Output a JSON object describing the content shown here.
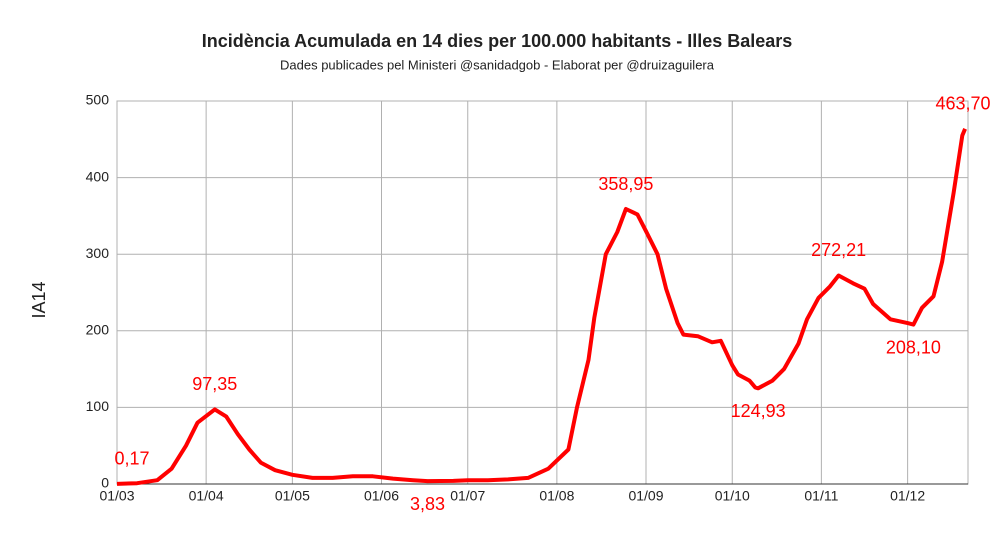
{
  "chart_data": {
    "type": "line",
    "title": "Incidència Acumulada en 14 dies per 100.000 habitants - Illes Balears",
    "subtitle": "Dades publicades pel Ministeri @sanidadgob - Elaborat per @druizaguilera",
    "y_label": "IA14",
    "x": [
      "01/03",
      "08/03",
      "15/03",
      "20/03",
      "25/03",
      "29/03",
      "04/04",
      "08/04",
      "12/04",
      "16/04",
      "20/04",
      "25/04",
      "01/05",
      "08/05",
      "15/05",
      "22/05",
      "29/05",
      "05/06",
      "12/06",
      "17/06",
      "26/06",
      "01/07",
      "08/07",
      "15/07",
      "22/07",
      "29/07",
      "05/08",
      "08/08",
      "12/08",
      "14/08",
      "18/08",
      "22/08",
      "25/08",
      "29/08",
      "01/09",
      "05/09",
      "08/09",
      "12/09",
      "14/09",
      "19/09",
      "24/09",
      "27/09",
      "01/10",
      "03/10",
      "07/10",
      "09/10",
      "10/10",
      "15/10",
      "19/10",
      "24/10",
      "27/10",
      "31/10",
      "04/11",
      "07/11",
      "12/11",
      "16/11",
      "19/11",
      "25/11",
      "01/12",
      "03/12",
      "06/12",
      "10/12",
      "13/12",
      "17/12",
      "20/12",
      "21/12"
    ],
    "series": [
      {
        "name": "IA14",
        "color": "#ff0000",
        "values": [
          0.17,
          1,
          5,
          20,
          50,
          80,
          97.35,
          88,
          65,
          45,
          28,
          18,
          12,
          8,
          8,
          10,
          10,
          7,
          5,
          3.83,
          4,
          5,
          5,
          6,
          8,
          20,
          45,
          100,
          162,
          217,
          300,
          329,
          358.95,
          352,
          330,
          300,
          255,
          210,
          195,
          193,
          185,
          187,
          155,
          143,
          135,
          126,
          124.93,
          135,
          150,
          183,
          215,
          243,
          258,
          272.21,
          262,
          255,
          235,
          215,
          210,
          208.1,
          230,
          245,
          290,
          380,
          455,
          463.7
        ],
        "value_labels": [
          "0,17",
          null,
          null,
          null,
          null,
          null,
          "97,35",
          null,
          null,
          null,
          null,
          null,
          null,
          null,
          null,
          null,
          null,
          null,
          null,
          "3,83",
          null,
          null,
          null,
          null,
          null,
          null,
          null,
          null,
          null,
          null,
          null,
          null,
          "358,95",
          null,
          null,
          null,
          null,
          null,
          null,
          null,
          null,
          null,
          null,
          null,
          null,
          null,
          "124,93",
          null,
          null,
          null,
          null,
          null,
          null,
          "272,21",
          null,
          null,
          null,
          null,
          null,
          "208,10",
          null,
          null,
          null,
          null,
          null,
          "463,70"
        ]
      }
    ],
    "xlim": [
      "01/03",
      "22/12"
    ],
    "xticks": [
      "01/03",
      "01/04",
      "01/05",
      "01/06",
      "01/07",
      "01/08",
      "01/09",
      "01/10",
      "01/11",
      "01/12"
    ],
    "ylim": [
      0,
      500
    ],
    "yticks": [
      0,
      100,
      200,
      300,
      400,
      500
    ],
    "grid": true
  }
}
